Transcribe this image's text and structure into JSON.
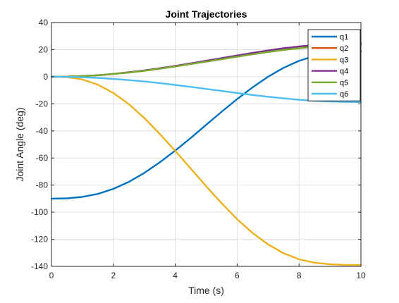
{
  "chart_data": {
    "type": "line",
    "title": "Joint Trajectories",
    "xlabel": "Time (s)",
    "ylabel": "Joint Angle (deg)",
    "xlim": [
      0,
      10
    ],
    "ylim": [
      -140,
      40
    ],
    "xticks": [
      0,
      2,
      4,
      6,
      8,
      10
    ],
    "yticks": [
      -140,
      -120,
      -100,
      -80,
      -60,
      -40,
      -20,
      0,
      20,
      40
    ],
    "grid": true,
    "legend_position": "top-right",
    "x": [
      0,
      0.5,
      1,
      1.5,
      2,
      2.5,
      3,
      3.5,
      4,
      4.5,
      5,
      5.5,
      6,
      6.5,
      7,
      7.5,
      8,
      8.5,
      9,
      9.5,
      10
    ],
    "series": [
      {
        "name": "q1",
        "color": "#0072BD",
        "values": [
          -90,
          -89.8,
          -88.7,
          -86.5,
          -82.8,
          -77.6,
          -71.0,
          -63.2,
          -54.5,
          -45.2,
          -35.5,
          -25.8,
          -16.5,
          -7.8,
          0.0,
          6.6,
          11.7,
          15.3,
          17.5,
          18.6,
          18.8
        ]
      },
      {
        "name": "q2",
        "color": "#D95319",
        "values": [
          0,
          0.1,
          0.5,
          1.1,
          2.0,
          3.1,
          4.4,
          5.9,
          7.6,
          9.4,
          11.2,
          13.0,
          14.8,
          16.6,
          18.3,
          19.8,
          21.1,
          22.2,
          23.0,
          23.4,
          23.5
        ]
      },
      {
        "name": "q3",
        "color": "#EDB120",
        "values": [
          0,
          -0.3,
          -2.0,
          -5.9,
          -12.0,
          -20.3,
          -30.5,
          -42.2,
          -54.8,
          -67.8,
          -80.9,
          -93.5,
          -105.2,
          -115.4,
          -123.8,
          -130.3,
          -134.8,
          -137.3,
          -138.5,
          -138.9,
          -139.0
        ]
      },
      {
        "name": "q4",
        "color": "#7E2F8E",
        "values": [
          0,
          0.1,
          0.5,
          1.1,
          2.1,
          3.3,
          4.7,
          6.3,
          8.0,
          9.9,
          11.8,
          13.8,
          15.7,
          17.6,
          19.4,
          21.0,
          22.3,
          23.4,
          24.1,
          24.6,
          24.7
        ]
      },
      {
        "name": "q5",
        "color": "#77AC30",
        "values": [
          0,
          0.1,
          0.5,
          1.1,
          2.0,
          3.1,
          4.4,
          5.9,
          7.6,
          9.4,
          11.2,
          13.0,
          14.8,
          16.6,
          18.3,
          19.8,
          21.1,
          22.2,
          23.0,
          23.4,
          23.5
        ]
      },
      {
        "name": "q6",
        "color": "#4DBEEE",
        "values": [
          0,
          -0.1,
          -0.4,
          -0.9,
          -1.6,
          -2.5,
          -3.5,
          -4.7,
          -6.1,
          -7.5,
          -9.0,
          -10.5,
          -12.0,
          -13.5,
          -14.8,
          -16.0,
          -17.0,
          -17.8,
          -18.3,
          -18.6,
          -18.7
        ]
      }
    ]
  }
}
